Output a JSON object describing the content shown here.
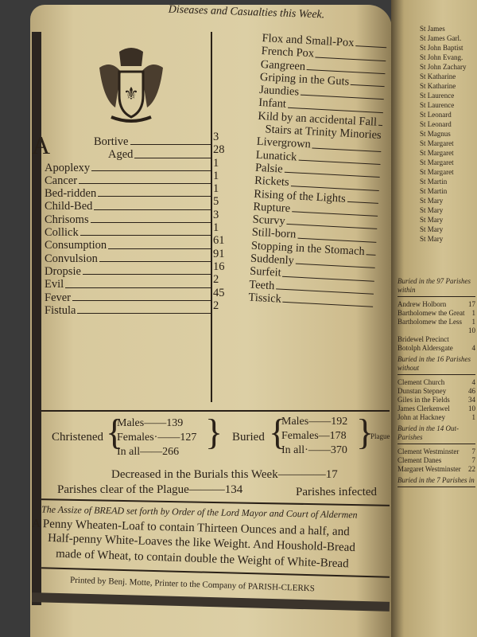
{
  "header": "Diseases and Casualties this Week.",
  "diseases_left": [
    {
      "name": "Bortive",
      "count": "3"
    },
    {
      "name": "Aged",
      "count": "28"
    },
    {
      "name": "Apoplexy",
      "count": "1"
    },
    {
      "name": "Cancer",
      "count": "1"
    },
    {
      "name": "Bed-ridden",
      "count": "1"
    },
    {
      "name": "Child-Bed",
      "count": "5"
    },
    {
      "name": "Chrisoms",
      "count": "3"
    },
    {
      "name": "Collick",
      "count": "1"
    },
    {
      "name": "Consumption",
      "count": "61"
    },
    {
      "name": "Convulsion",
      "count": "91"
    },
    {
      "name": "Dropsie",
      "count": "16"
    },
    {
      "name": "Evil",
      "count": "2"
    },
    {
      "name": "Fever",
      "count": "45"
    },
    {
      "name": "Fistula",
      "count": "2"
    }
  ],
  "initial_letter": "A",
  "diseases_right": [
    "Flox and Small-Pox",
    "French Pox",
    "Gangreen",
    "Griping in the Guts",
    "Jaundies",
    "Infant",
    "Kild by an accidental Fall",
    "Stairs at Trinity Minories",
    "Livergrown",
    "Lunatick",
    "Palsie",
    "Rickets",
    "Rising of the Lights",
    "Rupture",
    "Scurvy",
    "Still-born",
    "Stopping in the Stomach",
    "Suddenly",
    "Surfeit",
    "Teeth",
    "Tissick"
  ],
  "christened": {
    "label": "Christened",
    "males_label": "Males",
    "males": "139",
    "females_label": "Females",
    "females": "127",
    "all_label": "In all",
    "all": "266"
  },
  "buried": {
    "label": "Buried",
    "males_label": "Males",
    "males": "192",
    "females_label": "Females",
    "females": "178",
    "all_label": "In all",
    "all": "370",
    "plague": "Plague"
  },
  "decreased": {
    "label": "Decreased in the Burials this Week",
    "value": "17"
  },
  "parishes_clear": {
    "label": "Parishes clear of the Plague",
    "value": "134"
  },
  "parishes_infected": "Parishes infected",
  "assize": "The Assize of BREAD set forth by Order of the Lord Mayor and Court of Aldermen",
  "bread_lines": [
    "A Penny Wheaten-Loaf to contain Thirteen Ounces and a half, and",
    "Half-penny White-Loaves the like Weight.  And Houshold-Bread",
    "made of Wheat, to contain double the Weight of White-Bread"
  ],
  "printer": "Printed by Benj. Motte, Printer to the Company of PARISH-CLERKS",
  "right_page": {
    "parishes": [
      "St James",
      "St James Garl.",
      "St John Baptist",
      "St John Evang.",
      "St John Zachary",
      "St Katharine",
      "St Katharine",
      "St Laurence",
      "St Laurence",
      "St Leonard",
      "St Leonard",
      "St Magnus",
      "St Margaret",
      "St Margaret",
      "St Margaret",
      "St Margaret",
      "St Martin",
      "St Martin",
      "St Mary",
      "St Mary",
      "St Mary",
      "St Mary",
      "St Mary"
    ],
    "totals": [
      "Buried in the 97 Parishes within",
      "Buried in the 16 Parishes without",
      "Buried in the 14 Out-Parishes",
      "Buried in the 7 Parishes in"
    ],
    "without": [
      {
        "name": "Andrew Holborn",
        "count": "17"
      },
      {
        "name": "Bartholomew the Great",
        "count": "1"
      },
      {
        "name": "Bartholomew the Less",
        "count": "1"
      },
      {
        "name": "",
        "count": "10"
      },
      {
        "name": "Bridewel Precinct",
        "count": ""
      },
      {
        "name": "Botolph Aldersgate",
        "count": "4"
      }
    ],
    "out": [
      {
        "name": "Clement Church",
        "count": "4"
      },
      {
        "name": "Dunstan Stepney",
        "count": "46"
      },
      {
        "name": "Giles in the Fields",
        "count": "34"
      },
      {
        "name": "James Clerkenwel",
        "count": "10"
      },
      {
        "name": "John at Hackney",
        "count": "1"
      }
    ],
    "westminster": [
      {
        "name": "Clement Westminster",
        "count": "7"
      },
      {
        "name": "Clement Danes",
        "count": "7"
      },
      {
        "name": "Margaret Westminster",
        "count": "22"
      }
    ]
  }
}
